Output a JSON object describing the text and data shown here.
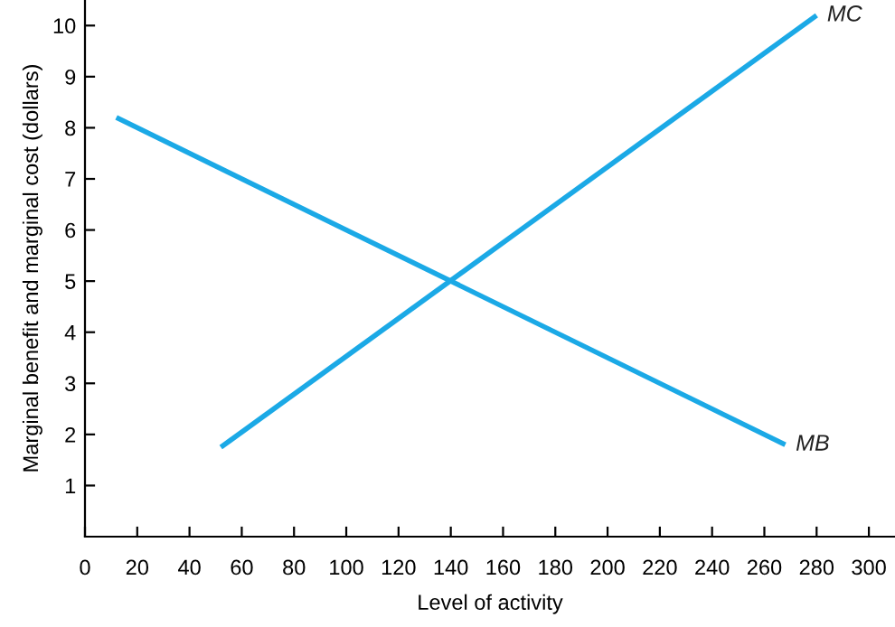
{
  "chart_data": {
    "type": "line",
    "xlabel": "Level of activity",
    "ylabel": "Marginal benefit and marginal cost (dollars)",
    "xlim": [
      0,
      310
    ],
    "ylim": [
      0,
      10.5
    ],
    "xticks": [
      0,
      20,
      40,
      60,
      80,
      100,
      120,
      140,
      160,
      180,
      200,
      220,
      240,
      260,
      280,
      300
    ],
    "yticks": [
      1,
      2,
      3,
      4,
      5,
      6,
      7,
      8,
      9,
      10
    ],
    "grid": false,
    "legend": false,
    "marker": "none",
    "line_style": "solid",
    "series": [
      {
        "name": "MB",
        "color": "#1ba9e6",
        "x": [
          12,
          268
        ],
        "values": [
          8.2,
          1.8
        ]
      },
      {
        "name": "MC",
        "color": "#1ba9e6",
        "x": [
          52,
          280
        ],
        "values": [
          1.75,
          10.2
        ]
      }
    ]
  }
}
